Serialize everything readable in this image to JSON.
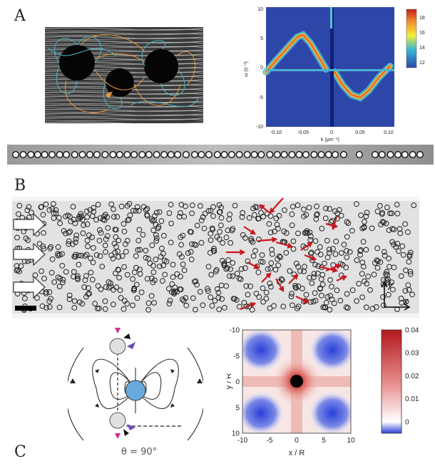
{
  "panels": {
    "a": "A",
    "b": "B",
    "c": "C"
  },
  "spectrum": {
    "xlabel": "k (µm⁻¹)",
    "ylabel": "ω (s⁻¹)",
    "xticks": [
      "-0.10",
      "-0.05",
      "0",
      "0.05",
      "0.10"
    ],
    "yticks": [
      "10",
      "5",
      "0",
      "-5",
      "-10"
    ],
    "cbar_ticks": [
      "18",
      "16",
      "14",
      "12"
    ]
  },
  "angle_label": "θ = 90°",
  "axes_glyphs": {
    "y": "y",
    "x": "x"
  },
  "chart_data": {
    "type": "heatmap",
    "title": "",
    "xlabel": "x / R",
    "ylabel": "y / R",
    "xlim": [
      -10,
      10
    ],
    "ylim": [
      10,
      -10
    ],
    "xticks": [
      "-10",
      "-5",
      "0",
      "5",
      "10"
    ],
    "yticks": [
      "-10",
      "-5",
      "0",
      "5",
      "10"
    ],
    "colorbar": {
      "min": -0.005,
      "max": 0.04,
      "ticks": [
        "0.04",
        "0.03",
        "0.02",
        "0.01",
        "0"
      ]
    },
    "colors": {
      "negative": "#2a3fd8",
      "zero": "#ffffff",
      "positive": "#b2181b"
    }
  }
}
